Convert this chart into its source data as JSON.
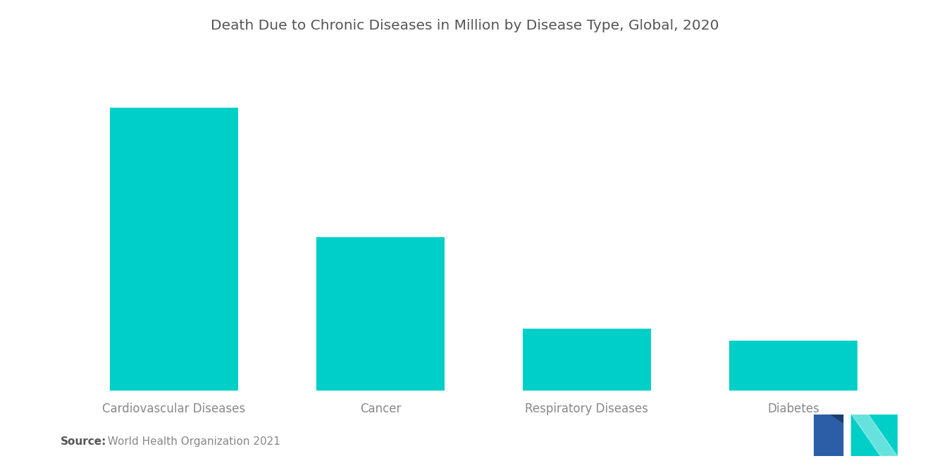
{
  "title": "Death Due to Chronic Diseases in Million by Disease Type, Global, 2020",
  "categories": [
    "Cardiovascular Diseases",
    "Cancer",
    "Respiratory Diseases",
    "Diabetes"
  ],
  "values": [
    18.6,
    10.1,
    4.1,
    3.3
  ],
  "bar_color": "#00CFC8",
  "background_color": "#ffffff",
  "source_label": "Source:",
  "source_text": "  World Health Organization 2021",
  "title_fontsize": 14.5,
  "label_fontsize": 12,
  "source_fontsize": 11,
  "source_label_color": "#555555",
  "source_text_color": "#888888",
  "label_color": "#888888",
  "title_color": "#555555",
  "ylim": [
    0,
    22
  ],
  "bar_width": 0.62,
  "xlim_left": -0.55,
  "xlim_right": 3.55
}
